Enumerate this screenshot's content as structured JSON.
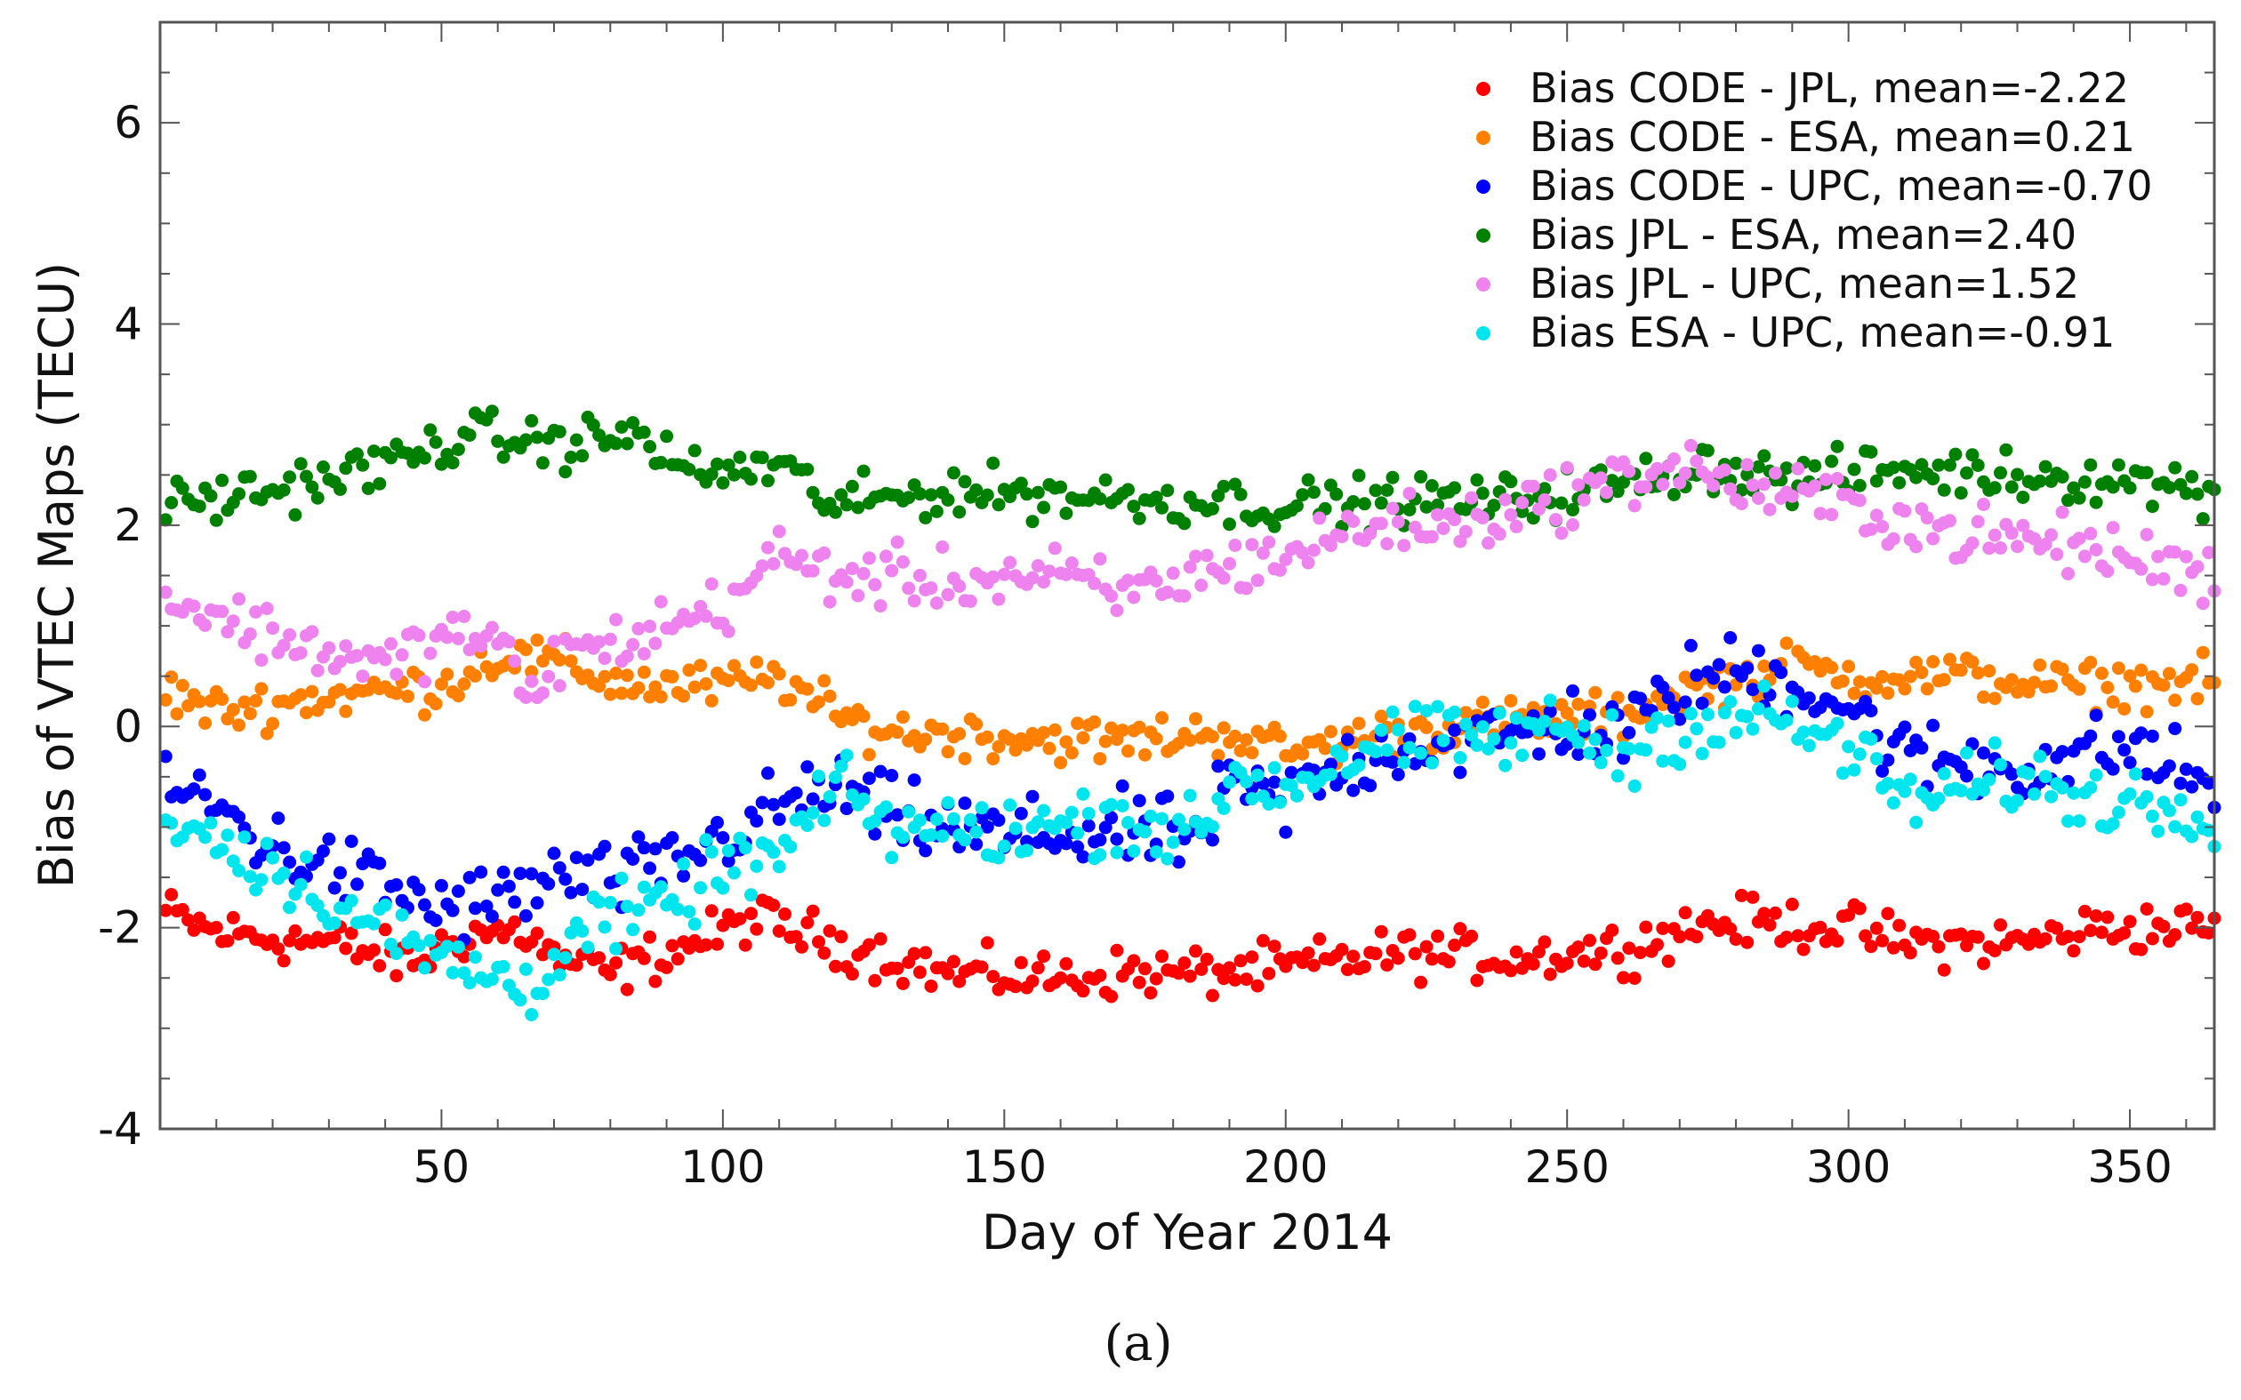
{
  "chart_data": {
    "type": "scatter",
    "title": "",
    "xlabel": "Day of Year 2014",
    "ylabel": "Bias of VTEC Maps (TECU)",
    "xlim": [
      0,
      365
    ],
    "ylim": [
      -4,
      7
    ],
    "xticks": [
      50,
      100,
      150,
      200,
      250,
      300,
      350
    ],
    "xtick_labels": [
      "50",
      "100",
      "150",
      "200",
      "250",
      "300",
      "350"
    ],
    "yticks": [
      -4,
      -2,
      0,
      2,
      4,
      6
    ],
    "ytick_labels": [
      "-4",
      "-2",
      "0",
      "2",
      "4",
      "6"
    ],
    "grid": false,
    "legend_position": "top-right",
    "panel_label": "(a)",
    "series": [
      {
        "name": "Bias CODE - JPL, mean=-2.22",
        "color": "#ff0000",
        "anchors": [
          [
            1,
            -1.85
          ],
          [
            10,
            -2.05
          ],
          [
            30,
            -2.15
          ],
          [
            45,
            -2.35
          ],
          [
            55,
            -2.05
          ],
          [
            65,
            -2.05
          ],
          [
            70,
            -2.3
          ],
          [
            80,
            -2.45
          ],
          [
            100,
            -2.05
          ],
          [
            105,
            -1.9
          ],
          [
            120,
            -2.15
          ],
          [
            140,
            -2.45
          ],
          [
            160,
            -2.5
          ],
          [
            170,
            -2.45
          ],
          [
            185,
            -2.45
          ],
          [
            200,
            -2.4
          ],
          [
            220,
            -2.25
          ],
          [
            240,
            -2.3
          ],
          [
            260,
            -2.2
          ],
          [
            275,
            -1.95
          ],
          [
            285,
            -1.95
          ],
          [
            300,
            -2.0
          ],
          [
            310,
            -2.15
          ],
          [
            330,
            -2.15
          ],
          [
            345,
            -2.0
          ],
          [
            365,
            -2.0
          ]
        ],
        "noise": 0.18
      },
      {
        "name": "Bias CODE - ESA, mean=0.21",
        "color": "#ff8000",
        "anchors": [
          [
            1,
            0.35
          ],
          [
            10,
            0.15
          ],
          [
            30,
            0.3
          ],
          [
            50,
            0.4
          ],
          [
            60,
            0.7
          ],
          [
            70,
            0.65
          ],
          [
            80,
            0.45
          ],
          [
            90,
            0.4
          ],
          [
            100,
            0.4
          ],
          [
            110,
            0.5
          ],
          [
            120,
            0.1
          ],
          [
            130,
            -0.05
          ],
          [
            150,
            -0.1
          ],
          [
            170,
            -0.15
          ],
          [
            190,
            -0.05
          ],
          [
            200,
            -0.25
          ],
          [
            220,
            -0.05
          ],
          [
            240,
            0.05
          ],
          [
            260,
            0.1
          ],
          [
            270,
            0.35
          ],
          [
            290,
            0.6
          ],
          [
            300,
            0.5
          ],
          [
            320,
            0.5
          ],
          [
            340,
            0.4
          ],
          [
            365,
            0.45
          ]
        ],
        "noise": 0.17
      },
      {
        "name": "Bias CODE - UPC, mean=-0.70",
        "color": "#0000ff",
        "anchors": [
          [
            1,
            -0.6
          ],
          [
            10,
            -0.8
          ],
          [
            20,
            -1.2
          ],
          [
            30,
            -1.4
          ],
          [
            40,
            -1.6
          ],
          [
            50,
            -1.8
          ],
          [
            60,
            -1.75
          ],
          [
            70,
            -1.5
          ],
          [
            80,
            -1.55
          ],
          [
            90,
            -1.4
          ],
          [
            100,
            -1.1
          ],
          [
            110,
            -0.8
          ],
          [
            120,
            -0.6
          ],
          [
            130,
            -0.9
          ],
          [
            150,
            -1.1
          ],
          [
            170,
            -1.05
          ],
          [
            185,
            -1.1
          ],
          [
            190,
            -0.6
          ],
          [
            200,
            -0.75
          ],
          [
            210,
            -0.4
          ],
          [
            220,
            -0.2
          ],
          [
            240,
            -0.1
          ],
          [
            250,
            0.05
          ],
          [
            260,
            -0.1
          ],
          [
            270,
            0.4
          ],
          [
            280,
            0.55
          ],
          [
            290,
            0.45
          ],
          [
            300,
            0.2
          ],
          [
            310,
            -0.3
          ],
          [
            330,
            -0.4
          ],
          [
            350,
            -0.2
          ],
          [
            365,
            -0.6
          ]
        ],
        "noise": 0.28
      },
      {
        "name": "Bias JPL - ESA, mean=2.40",
        "color": "#008000",
        "anchors": [
          [
            1,
            2.2
          ],
          [
            20,
            2.35
          ],
          [
            40,
            2.6
          ],
          [
            55,
            2.9
          ],
          [
            70,
            2.8
          ],
          [
            85,
            2.9
          ],
          [
            95,
            2.5
          ],
          [
            110,
            2.6
          ],
          [
            120,
            2.2
          ],
          [
            140,
            2.35
          ],
          [
            160,
            2.3
          ],
          [
            180,
            2.25
          ],
          [
            200,
            2.2
          ],
          [
            220,
            2.25
          ],
          [
            240,
            2.25
          ],
          [
            260,
            2.4
          ],
          [
            275,
            2.6
          ],
          [
            290,
            2.45
          ],
          [
            310,
            2.55
          ],
          [
            330,
            2.5
          ],
          [
            350,
            2.45
          ],
          [
            365,
            2.35
          ]
        ],
        "noise": 0.18
      },
      {
        "name": "Bias JPL - UPC, mean=1.52",
        "color": "#ee82ee",
        "anchors": [
          [
            1,
            1.3
          ],
          [
            20,
            0.9
          ],
          [
            40,
            0.6
          ],
          [
            50,
            0.9
          ],
          [
            60,
            0.9
          ],
          [
            65,
            0.2
          ],
          [
            70,
            0.7
          ],
          [
            80,
            0.8
          ],
          [
            100,
            1.2
          ],
          [
            110,
            1.7
          ],
          [
            120,
            1.5
          ],
          [
            140,
            1.45
          ],
          [
            160,
            1.5
          ],
          [
            170,
            1.3
          ],
          [
            190,
            1.6
          ],
          [
            200,
            1.7
          ],
          [
            215,
            2.0
          ],
          [
            230,
            2.0
          ],
          [
            250,
            2.3
          ],
          [
            270,
            2.6
          ],
          [
            280,
            2.4
          ],
          [
            300,
            2.2
          ],
          [
            320,
            1.9
          ],
          [
            340,
            1.8
          ],
          [
            365,
            1.5
          ]
        ],
        "noise": 0.22
      },
      {
        "name": "Bias ESA - UPC, mean=-0.91",
        "color": "#00e5ee",
        "anchors": [
          [
            1,
            -0.9
          ],
          [
            10,
            -1.1
          ],
          [
            20,
            -1.4
          ],
          [
            30,
            -1.7
          ],
          [
            45,
            -2.2
          ],
          [
            55,
            -2.4
          ],
          [
            65,
            -2.6
          ],
          [
            75,
            -2.0
          ],
          [
            90,
            -1.8
          ],
          [
            100,
            -1.4
          ],
          [
            110,
            -1.3
          ],
          [
            120,
            -0.6
          ],
          [
            130,
            -1.0
          ],
          [
            150,
            -1.05
          ],
          [
            170,
            -0.9
          ],
          [
            185,
            -1.1
          ],
          [
            190,
            -0.5
          ],
          [
            200,
            -0.6
          ],
          [
            215,
            -0.2
          ],
          [
            240,
            -0.1
          ],
          [
            250,
            0.0
          ],
          [
            260,
            -0.3
          ],
          [
            270,
            0.0
          ],
          [
            285,
            0.1
          ],
          [
            300,
            -0.2
          ],
          [
            310,
            -0.75
          ],
          [
            330,
            -0.5
          ],
          [
            340,
            -0.7
          ],
          [
            365,
            -0.8
          ]
        ],
        "noise": 0.25
      }
    ]
  }
}
